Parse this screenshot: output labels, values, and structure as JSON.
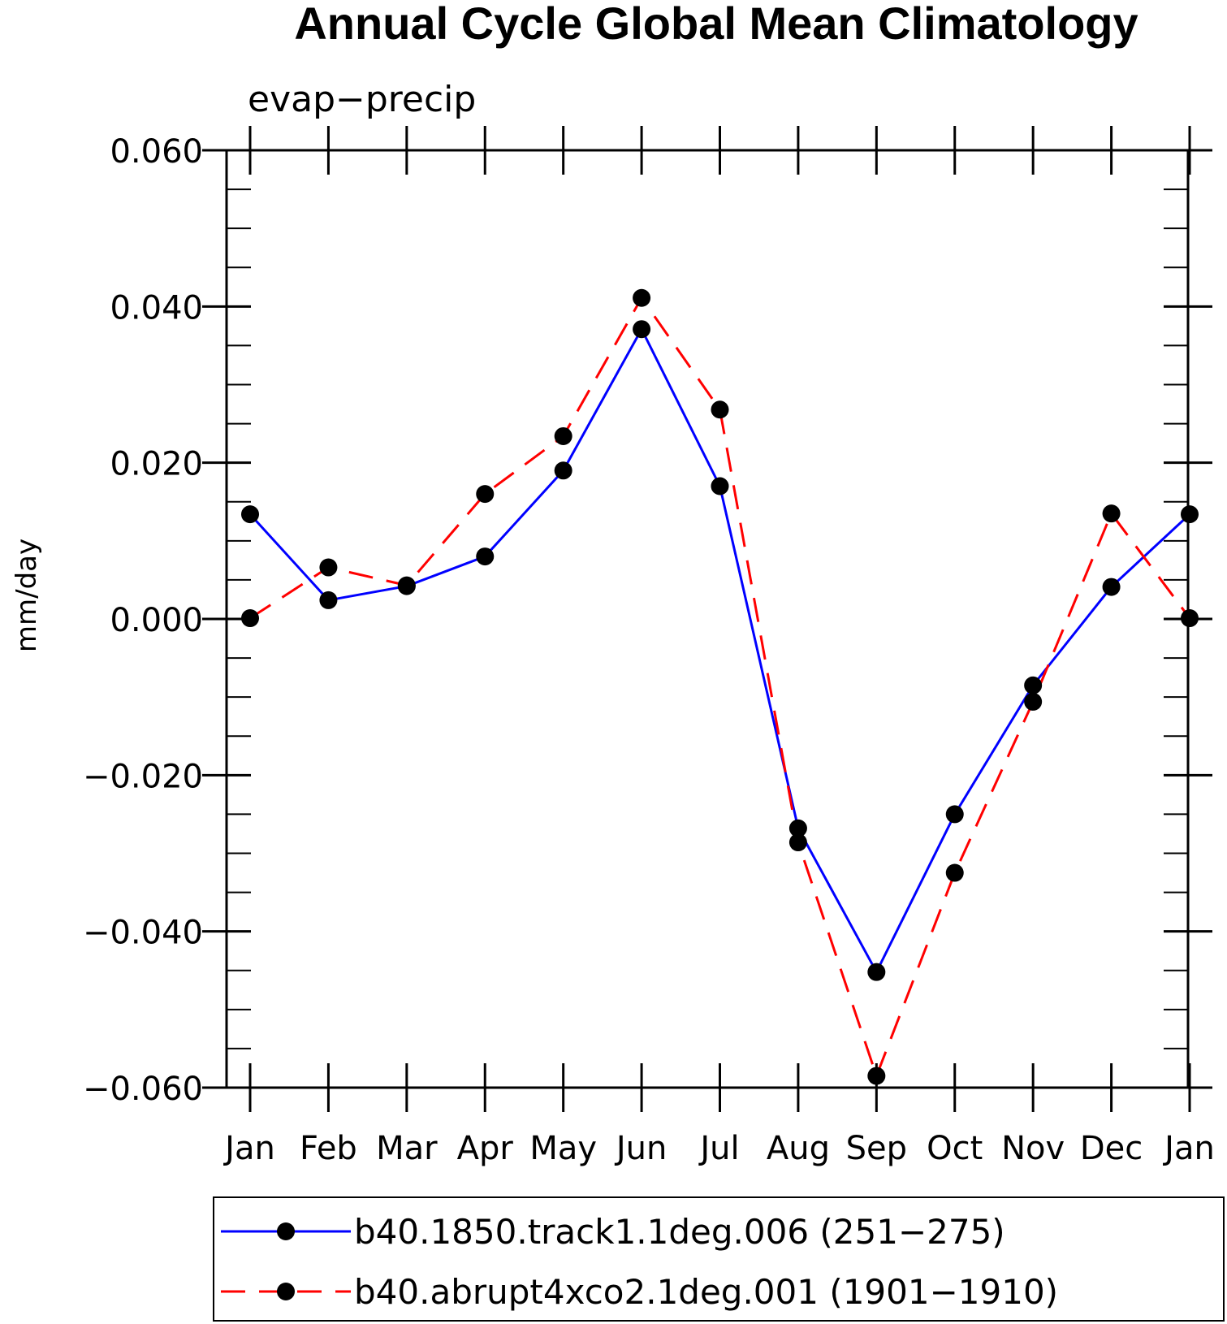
{
  "chart_data": {
    "type": "line",
    "title": "Annual Cycle Global Mean Climatology",
    "subtitle": "evap−precip",
    "xlabel": "",
    "ylabel": "mm/day",
    "categories": [
      "Jan",
      "Feb",
      "Mar",
      "Apr",
      "May",
      "Jun",
      "Jul",
      "Aug",
      "Sep",
      "Oct",
      "Nov",
      "Dec",
      "Jan"
    ],
    "ylim": [
      -0.06,
      0.06
    ],
    "yticks": [
      0.06,
      0.04,
      0.02,
      0.0,
      -0.02,
      -0.04,
      -0.06
    ],
    "ytick_labels": [
      "0.060",
      "0.040",
      "0.020",
      "0.000",
      "−0.020",
      "−0.040",
      "−0.060"
    ],
    "y_minor_step": 0.005,
    "legend_position": "bottom",
    "series": [
      {
        "name": "b40.1850.track1.1deg.006 (251−275)",
        "color": "#0000ff",
        "dash": "solid",
        "values": [
          0.0134,
          0.0024,
          0.0042,
          0.008,
          0.019,
          0.0371,
          0.017,
          -0.0268,
          -0.0452,
          -0.025,
          -0.0085,
          0.0041,
          0.0134
        ]
      },
      {
        "name": "b40.abrupt4xco2.1deg.001 (1901−1910)",
        "color": "#ff0000",
        "dash": "dashed",
        "values": [
          0.0001,
          0.0066,
          0.0043,
          0.016,
          0.0234,
          0.0411,
          0.0268,
          -0.0286,
          -0.0585,
          -0.0325,
          -0.0106,
          0.0135,
          0.0001
        ]
      }
    ]
  }
}
